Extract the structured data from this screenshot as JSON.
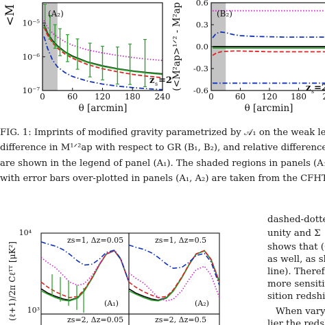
{
  "figure1": {
    "panel_A": {
      "label": "(A₂)",
      "ylabel": "<M",
      "xlabel": "θ [arcmin]",
      "x_ticks": [
        "0",
        "60",
        "120",
        "180",
        "240"
      ],
      "y_ticks": [
        "10⁻⁵",
        "10⁻⁶",
        "10⁻⁷"
      ],
      "redshift_label": "z",
      "redshift_sub": "s",
      "redshift_value": "=2"
    },
    "panel_B": {
      "label": "(B₂)",
      "ylabel": "(<M²ap>¹ᐟ² - M²ap",
      "xlabel": "θ [arcmin]",
      "x_ticks": [
        "0",
        "60",
        "120",
        "180",
        "24"
      ],
      "y_ticks": [
        "0.6",
        "0.3",
        "0.0",
        "-0.3",
        "-0.6"
      ],
      "redshift_label": "z",
      "redshift_sub": "s",
      "redshift_value": "=2"
    },
    "caption_lines": [
      "FIG. 1: Imprints of modified gravity parametrized by 𝒜₁ on the weak lensing ap",
      "difference in M¹ᐟ²ap with respect to GR (B₁, B₂), and relative difference in Δ with",
      "are shown in the legend of panel (A₁). The shaded regions in panels (A₁, A₂, B",
      "with error bars over-plotted in panels (A₁, A₂) are taken from the CFHTLS su"
    ]
  },
  "figure2": {
    "ylabel": "(ℓ+1)/2π Cℓᵀᵀ [μK²]",
    "y_ticks_top": [
      "10⁴",
      "10³"
    ],
    "panels": [
      {
        "label": "(A₁)",
        "zs": "zs=1, Δz=0.05"
      },
      {
        "label": "(A₂)",
        "zs": "zs=1, Δz=0.5"
      },
      {
        "label": "",
        "zs": "zs=2, Δz=0.05"
      },
      {
        "label": "",
        "zs": "zs=2, Δz=0.5"
      }
    ]
  },
  "right_text_lines": [
    "dashed-dotte",
    "unity and Σ",
    "shows that (Φ",
    "as well, as sh",
    "line). Therefo",
    "more sensitiv",
    "sition redshif",
    "When vary",
    "lier the redsh"
  ],
  "chart_data": [
    {
      "type": "line",
      "panel": "A2",
      "xlabel": "θ [arcmin]",
      "ylabel": "<M",
      "xlim": [
        0,
        240
      ],
      "ylim": [
        1e-07,
        4e-05
      ],
      "yscale": "log",
      "shaded_region": [
        0,
        30
      ],
      "x": [
        3,
        10,
        20,
        30,
        45,
        60,
        90,
        120,
        150,
        180,
        210,
        240
      ],
      "series": [
        {
          "color": "#000000",
          "style": "solid",
          "values": [
            9e-06,
            5e-06,
            3e-06,
            2.1e-06,
            1.4e-06,
            1.05e-06,
            7e-07,
            5.4e-07,
            4.4e-07,
            3.8e-07,
            3.4e-07,
            3.1e-07
          ]
        },
        {
          "color": "#2ca02c",
          "style": "solid",
          "values": [
            8e-06,
            4.7e-06,
            2.8e-06,
            2e-06,
            1.35e-06,
            1e-06,
            6.8e-07,
            5.2e-07,
            4.3e-07,
            3.7e-07,
            3.3e-07,
            3e-07
          ]
        },
        {
          "color": "#dd2222",
          "style": "dashed",
          "values": [
            7.5e-06,
            4.4e-06,
            2.6e-06,
            1.8e-06,
            1.2e-06,
            9e-07,
            5.9e-07,
            4.4e-07,
            3.6e-07,
            3e-07,
            2.65e-07,
            2.4e-07
          ]
        },
        {
          "color": "#cc22cc",
          "style": "dotted",
          "values": [
            1.2e-05,
            7.5e-06,
            5e-06,
            3.8e-06,
            2.8e-06,
            2.2e-06,
            1.6e-06,
            1.3e-06,
            1.1e-06,
            9.5e-07,
            8.5e-07,
            7.8e-07
          ]
        },
        {
          "color": "#1133bb",
          "style": "dashdot",
          "values": [
            4e-06,
            1.8e-06,
            8e-07,
            5e-07,
            3.4e-07,
            2.6e-07,
            1.9e-07,
            1.55e-07,
            1.35e-07,
            1.22e-07,
            1.13e-07,
            1.06e-07
          ]
        }
      ],
      "errorbars": {
        "x": [
          5,
          15,
          25,
          35,
          50,
          70,
          95,
          120,
          150,
          175,
          205
        ],
        "y": [
          1.6e-05,
          7.5e-06,
          4e-06,
          2.7e-06,
          1.8e-06,
          1.2e-06,
          8e-07,
          6.5e-07,
          5.5e-07,
          6e-07,
          6.5e-07
        ],
        "err": [
          0.35,
          0.35,
          0.35,
          0.4,
          0.4,
          0.45,
          0.5,
          0.5,
          0.55,
          0.6,
          0.7
        ]
      }
    },
    {
      "type": "line",
      "panel": "B2",
      "xlabel": "θ [arcmin]",
      "ylim": [
        -0.6,
        0.6
      ],
      "xlim": [
        0,
        240
      ],
      "shaded_region": [
        0,
        30
      ],
      "x": [
        3,
        10,
        20,
        30,
        45,
        60,
        90,
        120,
        150,
        180,
        210,
        240
      ],
      "series": [
        {
          "color": "#000000",
          "style": "solid",
          "values": [
            0,
            0,
            0,
            0,
            0,
            0,
            0,
            0,
            0,
            0,
            0,
            0
          ]
        },
        {
          "color": "#2ca02c",
          "style": "solid",
          "values": [
            -0.02,
            -0.02,
            -0.02,
            -0.02,
            -0.02,
            -0.02,
            -0.02,
            -0.02,
            -0.02,
            -0.02,
            -0.02,
            -0.02
          ]
        },
        {
          "color": "#dd2222",
          "style": "dashed",
          "values": [
            -0.12,
            -0.09,
            -0.07,
            -0.065,
            -0.06,
            -0.06,
            -0.065,
            -0.07,
            -0.07,
            -0.07,
            -0.07,
            -0.07
          ]
        },
        {
          "color": "#cc22cc",
          "style": "dotted",
          "values": [
            0.49,
            0.49,
            0.49,
            0.49,
            0.49,
            0.49,
            0.49,
            0.49,
            0.49,
            0.49,
            0.49,
            0.49
          ]
        },
        {
          "color": "#1133bb",
          "style": "dashdot",
          "values": [
            0.12,
            0.18,
            0.2,
            0.19,
            0.165,
            0.15,
            0.14,
            0.135,
            0.13,
            0.13,
            0.13,
            0.13
          ]
        },
        {
          "color": "#1133bb",
          "style": "dashdot",
          "values": [
            -0.5,
            -0.5,
            -0.5,
            -0.5,
            -0.5,
            -0.5,
            -0.5,
            -0.5,
            -0.5,
            -0.5,
            -0.5,
            -0.5
          ]
        }
      ]
    },
    {
      "type": "line",
      "panel": "Fig2-A1",
      "xscale": "log",
      "yscale": "log",
      "x": [
        2,
        3,
        5,
        8,
        12,
        20,
        30,
        50,
        80,
        120,
        200,
        300,
        500
      ],
      "series": [
        {
          "color": "#000000",
          "style": "solid",
          "values": [
            1600,
            1400,
            1250,
            1150,
            1100,
            1200,
            1500,
            2300,
            3600,
            5000,
            5600,
            4200,
            2000
          ]
        },
        {
          "color": "#2ca02c",
          "style": "solid",
          "values": [
            1500,
            1350,
            1200,
            1100,
            1080,
            1180,
            1480,
            2280,
            3600,
            5000,
            5600,
            4200,
            2000
          ]
        },
        {
          "color": "#dd2222",
          "style": "dashed",
          "values": [
            2000,
            1700,
            1450,
            1300,
            1200,
            1250,
            1550,
            2350,
            3650,
            5050,
            5650,
            4250,
            2000
          ]
        },
        {
          "color": "#cc22cc",
          "style": "dotted",
          "values": [
            4500,
            3800,
            3200,
            2500,
            2000,
            1800,
            1900,
            2500,
            3700,
            5000,
            5600,
            4200,
            2000
          ]
        },
        {
          "color": "#1133bb",
          "style": "dashdot",
          "values": [
            7500,
            7000,
            6500,
            5800,
            5000,
            4000,
            3500,
            3600,
            4300,
            5300,
            5700,
            4300,
            2000
          ]
        }
      ]
    }
  ]
}
